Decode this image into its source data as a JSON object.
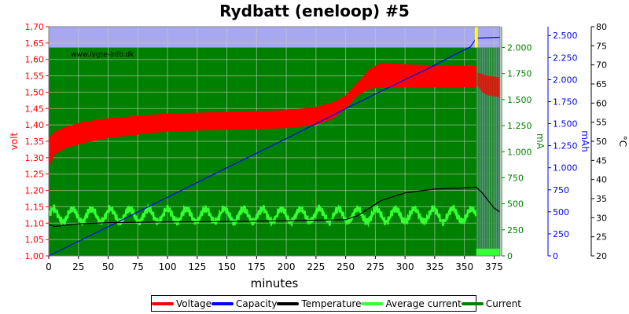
{
  "chart_data": {
    "type": "line",
    "title": "Rydbatt (eneloop) #5",
    "watermark": "www.lygte-info.dk",
    "xlabel": "minutes",
    "xlim": [
      0,
      380
    ],
    "x_ticks": [
      "0",
      "25",
      "50",
      "75",
      "100",
      "125",
      "150",
      "175",
      "200",
      "225",
      "250",
      "275",
      "300",
      "325",
      "350",
      "375"
    ],
    "axes": {
      "volt": {
        "label": "volt",
        "color": "#ff0000",
        "range": [
          1.0,
          1.7
        ],
        "ticks": [
          "1,00",
          "1,05",
          "1,10",
          "1,15",
          "1,20",
          "1,25",
          "1,30",
          "1,35",
          "1,40",
          "1,45",
          "1,50",
          "1,55",
          "1,60",
          "1,65",
          "1,70"
        ]
      },
      "mA": {
        "label": "mA",
        "color": "#008000",
        "range": [
          0,
          2200
        ],
        "ticks": [
          "0",
          "250",
          "500",
          "750",
          "1.000",
          "1.250",
          "1.500",
          "1.750",
          "2.000"
        ]
      },
      "mAh": {
        "label": "mAh",
        "color": "#0000ff",
        "range": [
          0,
          2600
        ],
        "ticks": [
          "0",
          "250",
          "500",
          "750",
          "1.000",
          "1.250",
          "1.500",
          "1.750",
          "2.000",
          "2.250",
          "2.500"
        ]
      },
      "celsius": {
        "label": "°C",
        "color": "#000000",
        "range": [
          20,
          80
        ],
        "ticks": [
          "20",
          "25",
          "30",
          "35",
          "40",
          "45",
          "50",
          "55",
          "60",
          "65",
          "70",
          "75",
          "80"
        ]
      }
    },
    "series": [
      {
        "name": "Voltage",
        "color": "#ff0000",
        "axis": "volt",
        "x": [
          0,
          5,
          15,
          30,
          50,
          100,
          150,
          200,
          225,
          240,
          250,
          260,
          270,
          280,
          300,
          340,
          360
        ],
        "upper": [
          1.36,
          1.38,
          1.395,
          1.41,
          1.42,
          1.435,
          1.44,
          1.445,
          1.455,
          1.47,
          1.49,
          1.53,
          1.57,
          1.59,
          1.585,
          1.58,
          1.58
        ],
        "lower": [
          1.27,
          1.31,
          1.33,
          1.345,
          1.36,
          1.38,
          1.385,
          1.39,
          1.4,
          1.42,
          1.45,
          1.49,
          1.51,
          1.515,
          1.515,
          1.515,
          1.515
        ],
        "rest_x": [
          361,
          365,
          370,
          375,
          380
        ],
        "rest_upper": [
          1.56,
          1.555,
          1.55,
          1.548,
          1.545
        ],
        "rest_lower": [
          1.52,
          1.5,
          1.49,
          1.487,
          1.485
        ]
      },
      {
        "name": "Capacity",
        "color": "#0000ff",
        "axis": "mAh",
        "x": [
          0,
          50,
          100,
          150,
          200,
          250,
          280,
          300,
          320,
          340,
          355,
          360,
          380
        ],
        "values": [
          0,
          330,
          665,
          1000,
          1330,
          1670,
          1870,
          2000,
          2130,
          2270,
          2370,
          2470,
          2480
        ]
      },
      {
        "name": "Temperature",
        "color": "#000000",
        "axis": "celsius",
        "x": [
          0,
          5,
          25,
          50,
          100,
          150,
          200,
          250,
          260,
          270,
          280,
          300,
          325,
          350,
          360,
          365,
          370,
          375,
          380
        ],
        "values": [
          28.2,
          27.7,
          28.4,
          28.7,
          28.9,
          29.0,
          29.2,
          29.5,
          30.5,
          32.5,
          34.5,
          36.5,
          37.5,
          37.8,
          38.0,
          36.5,
          34.5,
          32.5,
          31.5
        ]
      },
      {
        "name": "Average current",
        "color": "#33ff33",
        "axis": "mA",
        "charge_band_mA": [
          300,
          480
        ],
        "rest_mA": 70
      },
      {
        "name": "Current",
        "color": "#008000",
        "axis": "mA",
        "charge_mA": 2000,
        "pulse_mA": 2000,
        "cutoff_minutes": 360
      }
    ],
    "grid": true,
    "legend_position": "bottom",
    "charge_end_marker_color": "#ffff00"
  },
  "legend": [
    "Voltage",
    "Capacity",
    "Temperature",
    "Average current",
    "Current"
  ]
}
